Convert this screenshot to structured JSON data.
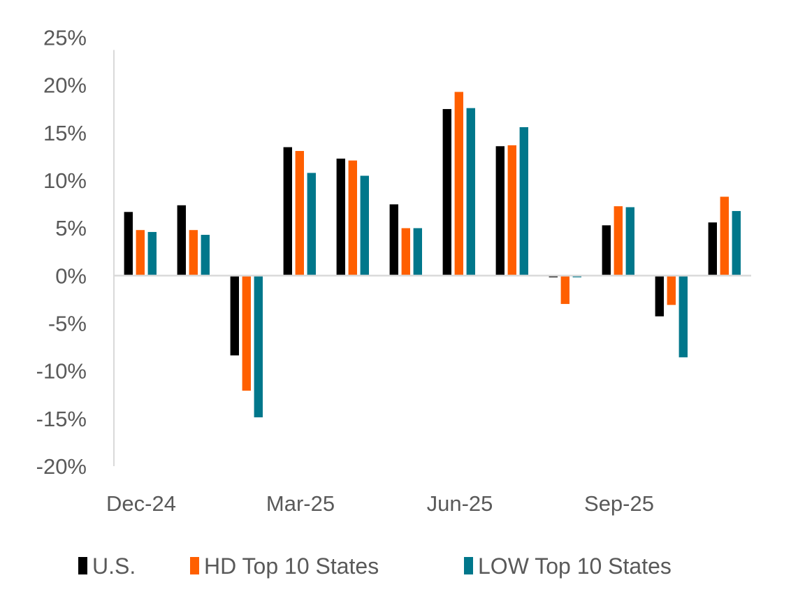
{
  "chart_data": {
    "type": "bar",
    "title": "",
    "xlabel": "",
    "ylabel": "",
    "categories": [
      "Dec-24",
      "Jan-25",
      "Feb-25",
      "Mar-25",
      "Apr-25",
      "May-25",
      "Jun-25",
      "Jul-25",
      "Aug-25",
      "Sep-25",
      "Oct-25",
      "Nov-25"
    ],
    "x_tick_labels": [
      "Dec-24",
      "",
      "",
      "Mar-25",
      "",
      "",
      "Jun-25",
      "",
      "",
      "Sep-25",
      "",
      ""
    ],
    "ylim": [
      -20,
      25
    ],
    "y_ticks": [
      25,
      20,
      15,
      10,
      5,
      0,
      -5,
      -10,
      -15,
      -20
    ],
    "y_tick_labels": [
      "25%",
      "20%",
      "15%",
      "10%",
      "5%",
      "0%",
      "-5%",
      "-10%",
      "-15%",
      "-20%"
    ],
    "y_format": "percent",
    "grid": false,
    "legend_position": "bottom",
    "series": [
      {
        "name": "U.S.",
        "color": "#000000",
        "values": [
          6.7,
          7.4,
          -8.4,
          13.5,
          12.3,
          7.5,
          17.5,
          13.6,
          -0.2,
          5.3,
          -4.3,
          5.6
        ]
      },
      {
        "name": "HD Top 10 States",
        "color": "#FF5F00",
        "values": [
          4.8,
          4.8,
          -12.1,
          13.1,
          12.1,
          5.0,
          19.3,
          13.7,
          -3.0,
          7.3,
          -3.1,
          8.3
        ]
      },
      {
        "name": "LOW Top 10 States",
        "color": "#00778B",
        "values": [
          4.6,
          4.3,
          -14.9,
          10.8,
          10.5,
          5.0,
          17.6,
          15.6,
          -0.2,
          7.2,
          -8.6,
          6.8
        ]
      }
    ]
  }
}
